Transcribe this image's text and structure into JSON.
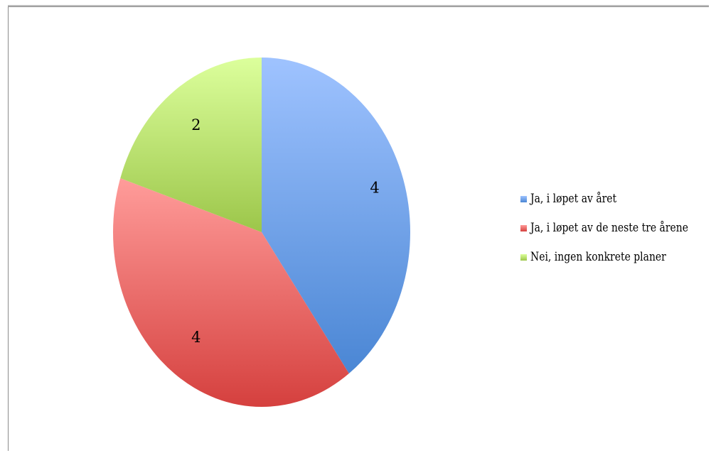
{
  "chart_data": {
    "type": "pie",
    "categories": [
      "Ja, i løpet av året",
      "Ja, i løpet av de neste tre årene",
      "Nei, ingen konkrete planer"
    ],
    "values": [
      4,
      4,
      2
    ],
    "data_labels": [
      "4",
      "4",
      "2"
    ],
    "colors": [
      "#4a86d4",
      "#d5403e",
      "#9cc64a"
    ],
    "colors_light": [
      "#9fc3ff",
      "#ff9c9a",
      "#dcff9c"
    ],
    "start_angle_deg": 0,
    "direction": "clockwise",
    "legend": "right"
  }
}
